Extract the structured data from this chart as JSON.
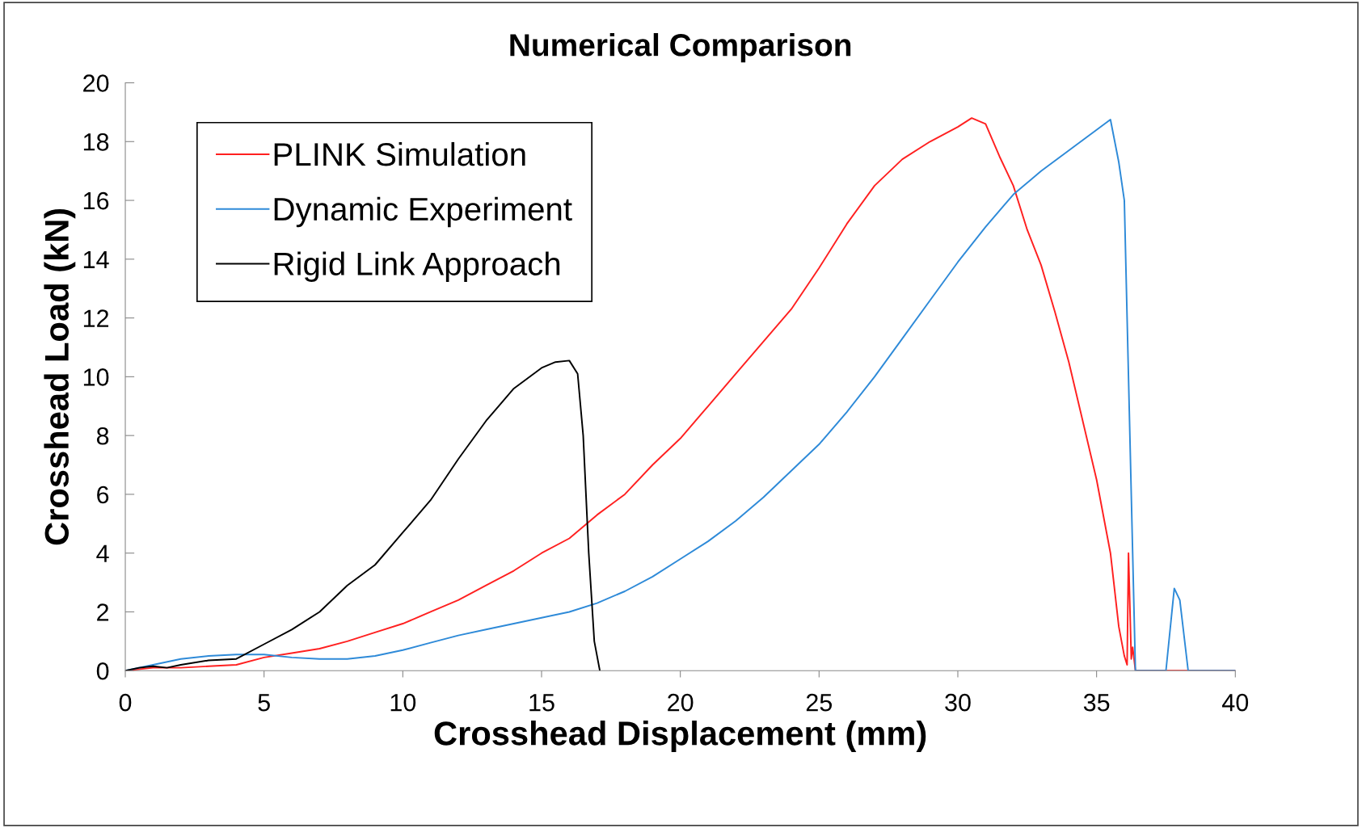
{
  "chart_data": {
    "type": "line",
    "title": "Numerical Comparison",
    "xlabel": "Crosshead Displacement (mm)",
    "ylabel": "Crosshead Load (kN)",
    "xlim": [
      0,
      40
    ],
    "xticks": [
      0,
      5,
      10,
      15,
      20,
      25,
      30,
      35,
      40
    ],
    "ylim": [
      0,
      20
    ],
    "yticks": [
      0,
      2,
      4,
      6,
      8,
      10,
      12,
      14,
      16,
      18,
      20
    ],
    "grid": false,
    "legend": "top left",
    "marker": "none",
    "line_style": "solid",
    "series": [
      {
        "name": "PLINK Simulation",
        "color": "#ff2020",
        "x": [
          0,
          1,
          2,
          3,
          4,
          5,
          6,
          7,
          8,
          9,
          10,
          11,
          12,
          13,
          14,
          15,
          16,
          17,
          18,
          19,
          20,
          21,
          22,
          23,
          24,
          25,
          26,
          27,
          28,
          29,
          30,
          30.5,
          31,
          31.5,
          32,
          32.5,
          33,
          33.5,
          34,
          35,
          35.5,
          35.8,
          36,
          36.1,
          36.15,
          36.25,
          36.3,
          36.4,
          40
        ],
        "values": [
          0,
          0.1,
          0.1,
          0.15,
          0.2,
          0.45,
          0.6,
          0.75,
          1.0,
          1.3,
          1.6,
          2.0,
          2.4,
          2.9,
          3.4,
          4.0,
          4.5,
          5.3,
          6.0,
          7.0,
          7.9,
          9.0,
          10.1,
          11.2,
          12.3,
          13.7,
          15.2,
          16.5,
          17.4,
          18.0,
          18.5,
          18.8,
          18.6,
          17.5,
          16.5,
          15.0,
          13.8,
          12.2,
          10.5,
          6.5,
          4.0,
          1.5,
          0.5,
          0.2,
          4.0,
          0.4,
          0.8,
          0,
          0
        ]
      },
      {
        "name": "Dynamic Experiment",
        "color": "#2e8ad8",
        "x": [
          0,
          1,
          2,
          3,
          4,
          5,
          6,
          7,
          8,
          9,
          10,
          11,
          12,
          13,
          14,
          15,
          16,
          17,
          18,
          19,
          20,
          21,
          22,
          23,
          24,
          25,
          26,
          27,
          28,
          29,
          30,
          31,
          32,
          33,
          34,
          35,
          35.5,
          35.8,
          36,
          36.2,
          36.4,
          37.5,
          37.8,
          38.0,
          38.3,
          40
        ],
        "values": [
          0,
          0.2,
          0.4,
          0.5,
          0.55,
          0.55,
          0.45,
          0.4,
          0.4,
          0.5,
          0.7,
          0.95,
          1.2,
          1.4,
          1.6,
          1.8,
          2.0,
          2.3,
          2.7,
          3.2,
          3.8,
          4.4,
          5.1,
          5.9,
          6.8,
          7.7,
          8.8,
          10.0,
          11.3,
          12.6,
          13.9,
          15.1,
          16.2,
          17.0,
          17.7,
          18.4,
          18.75,
          17.3,
          16,
          8,
          0,
          0,
          2.8,
          2.4,
          0,
          0
        ]
      },
      {
        "name": "Rigid Link Approach",
        "color": "#000000",
        "x": [
          0,
          0.5,
          1,
          1.5,
          2,
          3,
          4,
          5,
          6,
          7,
          8,
          9,
          10,
          11,
          12,
          13,
          14,
          15,
          15.5,
          16,
          16.3,
          16.5,
          16.7,
          16.9,
          17.1
        ],
        "values": [
          0,
          0.1,
          0.15,
          0.1,
          0.2,
          0.35,
          0.4,
          0.9,
          1.4,
          2.0,
          2.9,
          3.6,
          4.7,
          5.8,
          7.2,
          8.5,
          9.6,
          10.3,
          10.5,
          10.55,
          10.1,
          8,
          4,
          1,
          0
        ]
      }
    ]
  }
}
